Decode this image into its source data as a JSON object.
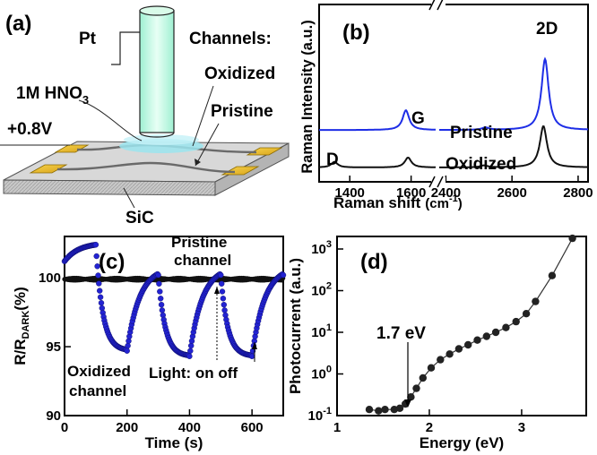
{
  "panel_a": {
    "panel_label": "(a)",
    "electrode_label": "Pt",
    "electrolyte_label": "1M HNO",
    "electrolyte_subscript": "3",
    "voltage_label": "+0.8V",
    "channels_title": "Channels:",
    "oxidized_label": "Oxidized",
    "pristine_label": "Pristine",
    "substrate_label": "SiC"
  },
  "panel_c_annotations": {
    "pristine_line1": "Pristine",
    "pristine_line2": "channel",
    "oxidized_line1": "Oxidized",
    "oxidized_line2": "channel",
    "light_label": "Light: on off"
  },
  "panel_d_annotations": {
    "threshold_label": "1.7 eV"
  },
  "chart_data": [
    {
      "panel": "(b)",
      "type": "line",
      "xlabel": "Raman shift",
      "xlabel_unit": "(cm",
      "xlabel_sup": "-1",
      "xlabel_close": ")",
      "ylabel": "Raman Intensity (a.u.)",
      "x_axis_break": true,
      "x_ranges": [
        [
          1300,
          1680
        ],
        [
          2380,
          2830
        ]
      ],
      "x_ticks": [
        1400,
        1600,
        2400,
        2600,
        2800
      ],
      "y_tick_labels": false,
      "peak_labels": [
        "G",
        "2D",
        "D"
      ],
      "series": [
        {
          "name": "Pristine",
          "color": "#1e2ee6",
          "peaks": [
            {
              "x": 1583,
              "height": 1.0
            },
            {
              "x": 2520,
              "height": 0.12
            },
            {
              "x": 2700,
              "height": 3.6
            }
          ],
          "baseline": 0.0,
          "offset": 1.9
        },
        {
          "name": "Oxidized",
          "color": "#111111",
          "peaks": [
            {
              "x": 1350,
              "height": 0.28
            },
            {
              "x": 1590,
              "height": 0.5
            },
            {
              "x": 2515,
              "height": 0.1
            },
            {
              "x": 2695,
              "height": 2.1
            }
          ],
          "baseline": 0.0,
          "offset": 0.0
        }
      ]
    },
    {
      "panel": "(c)",
      "type": "scatter",
      "xlabel": "Time (s)",
      "ylabel_main": "R/R",
      "ylabel_sub": "DARK",
      "ylabel_unit": "(%)",
      "xlim": [
        0,
        700
      ],
      "ylim": [
        90,
        103
      ],
      "x_ticks": [
        0,
        200,
        400,
        600
      ],
      "y_ticks": [
        90,
        95,
        100
      ],
      "series": [
        {
          "name": "Pristine channel",
          "color": "#111111",
          "level": 99.9
        },
        {
          "name": "Oxidized channel",
          "color": "#2323d2",
          "events": {
            "light_on": [
              100,
              300,
              500
            ],
            "light_off": [
              0,
              200,
              400,
              600
            ]
          },
          "max": 102.4,
          "min_values": [
            94.7,
            94.3,
            94.3,
            94.1
          ]
        }
      ],
      "light_on_marker": 500,
      "light_off_marker": 600
    },
    {
      "panel": "(d)",
      "type": "scatter",
      "xlabel": "Energy (eV)",
      "ylabel": "Photocurrent (a.u.)",
      "y_scale": "log",
      "xlim": [
        1,
        3.7
      ],
      "ylim": [
        0.1,
        2000
      ],
      "x_ticks": [
        1,
        2,
        3
      ],
      "y_ticks": [
        0.1,
        1,
        10,
        100,
        1000
      ],
      "y_tick_labels": [
        [
          "10",
          "-1"
        ],
        [
          "10",
          "0"
        ],
        [
          "10",
          "1"
        ],
        [
          "10",
          "2"
        ],
        [
          "10",
          "3"
        ]
      ],
      "series": [
        {
          "name": "Photocurrent",
          "x": [
            1.35,
            1.45,
            1.52,
            1.62,
            1.68,
            1.74,
            1.8,
            1.86,
            1.93,
            2.02,
            2.12,
            2.22,
            2.32,
            2.42,
            2.52,
            2.62,
            2.72,
            2.83,
            2.94,
            3.05,
            3.15,
            3.33,
            3.55
          ],
          "y": [
            0.14,
            0.13,
            0.14,
            0.14,
            0.15,
            0.19,
            0.28,
            0.45,
            0.8,
            1.4,
            2.2,
            3.0,
            4.0,
            5.0,
            6.5,
            8.0,
            10.0,
            13.0,
            18.0,
            28.0,
            55.0,
            230.0,
            1800.0
          ]
        }
      ]
    }
  ]
}
